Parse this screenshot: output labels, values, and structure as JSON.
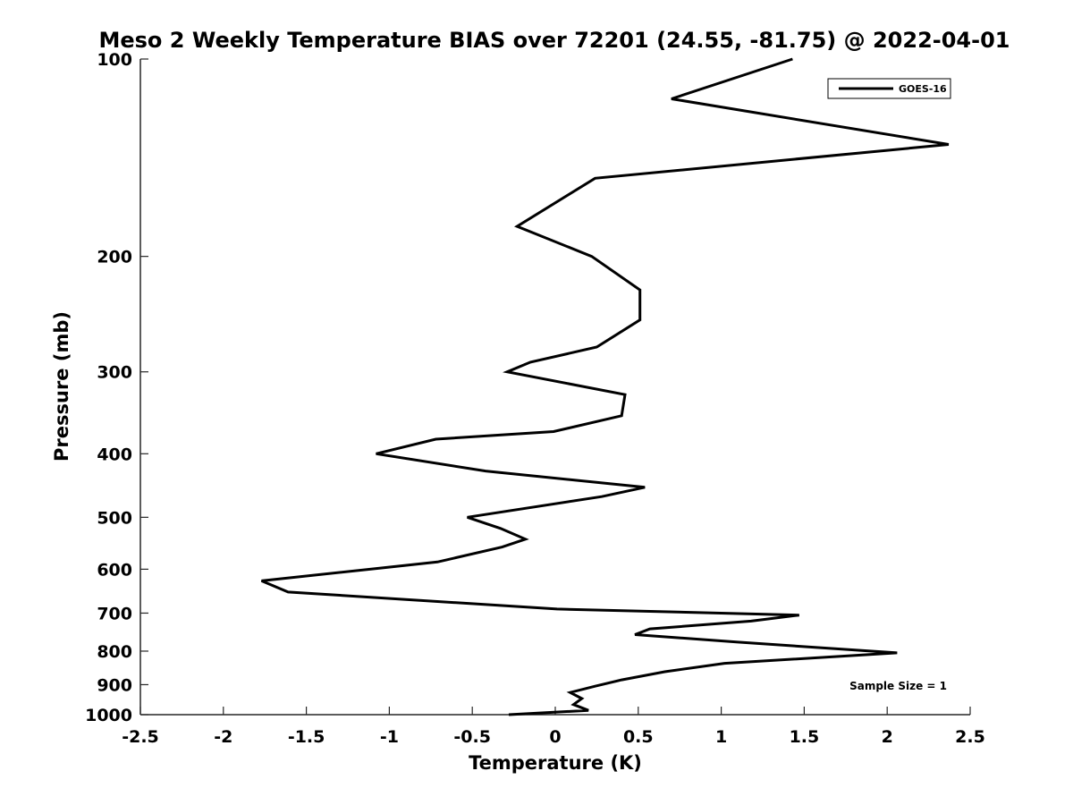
{
  "chart_data": {
    "type": "line",
    "title": "Meso 2 Weekly Temperature BIAS over 72201 (24.55, -81.75) @ 2022-04-01",
    "xlabel": "Temperature (K)",
    "ylabel": "Pressure (mb)",
    "xlim": [
      -2.5,
      2.5
    ],
    "ylim": [
      1000,
      100
    ],
    "yscale": "log",
    "xticks": [
      -2.5,
      -2,
      -1.5,
      -1,
      -0.5,
      0,
      0.5,
      1,
      1.5,
      2,
      2.5
    ],
    "xtick_labels": [
      "-2.5",
      "-2",
      "-1.5",
      "-1",
      "-0.5",
      "0",
      "0.5",
      "1",
      "1.5",
      "2",
      "2.5"
    ],
    "yticks": [
      100,
      200,
      300,
      400,
      500,
      600,
      700,
      800,
      900,
      1000
    ],
    "ytick_labels": [
      "100",
      "200",
      "300",
      "400",
      "500",
      "600",
      "700",
      "800",
      "900",
      "1000"
    ],
    "grid": false,
    "legend_position": "top-right",
    "annotation": "Sample Size = 1",
    "series": [
      {
        "name": "GOES-16",
        "color": "#000000",
        "points": [
          {
            "x": 1.43,
            "p": 100
          },
          {
            "x": 0.7,
            "p": 115
          },
          {
            "x": 2.37,
            "p": 135
          },
          {
            "x": 0.24,
            "p": 152
          },
          {
            "x": -0.23,
            "p": 180
          },
          {
            "x": 0.22,
            "p": 200
          },
          {
            "x": 0.51,
            "p": 225
          },
          {
            "x": 0.51,
            "p": 250
          },
          {
            "x": 0.25,
            "p": 275
          },
          {
            "x": -0.15,
            "p": 290
          },
          {
            "x": -0.29,
            "p": 300
          },
          {
            "x": 0.42,
            "p": 325
          },
          {
            "x": 0.4,
            "p": 350
          },
          {
            "x": -0.01,
            "p": 370
          },
          {
            "x": -0.72,
            "p": 380
          },
          {
            "x": -1.08,
            "p": 400
          },
          {
            "x": -0.42,
            "p": 425
          },
          {
            "x": 0.54,
            "p": 450
          },
          {
            "x": 0.28,
            "p": 465
          },
          {
            "x": -0.53,
            "p": 500
          },
          {
            "x": -0.33,
            "p": 520
          },
          {
            "x": -0.18,
            "p": 540
          },
          {
            "x": -0.32,
            "p": 555
          },
          {
            "x": -0.71,
            "p": 585
          },
          {
            "x": -1.77,
            "p": 625
          },
          {
            "x": -1.61,
            "p": 650
          },
          {
            "x": 0.01,
            "p": 690
          },
          {
            "x": 1.47,
            "p": 705
          },
          {
            "x": 1.18,
            "p": 720
          },
          {
            "x": 0.57,
            "p": 740
          },
          {
            "x": 0.48,
            "p": 755
          },
          {
            "x": 1.1,
            "p": 775
          },
          {
            "x": 2.06,
            "p": 805
          },
          {
            "x": 1.02,
            "p": 835
          },
          {
            "x": 0.66,
            "p": 860
          },
          {
            "x": 0.4,
            "p": 885
          },
          {
            "x": 0.24,
            "p": 905
          },
          {
            "x": 0.09,
            "p": 925
          },
          {
            "x": 0.16,
            "p": 945
          },
          {
            "x": 0.11,
            "p": 965
          },
          {
            "x": 0.2,
            "p": 985
          },
          {
            "x": -0.28,
            "p": 1000
          }
        ]
      }
    ]
  }
}
